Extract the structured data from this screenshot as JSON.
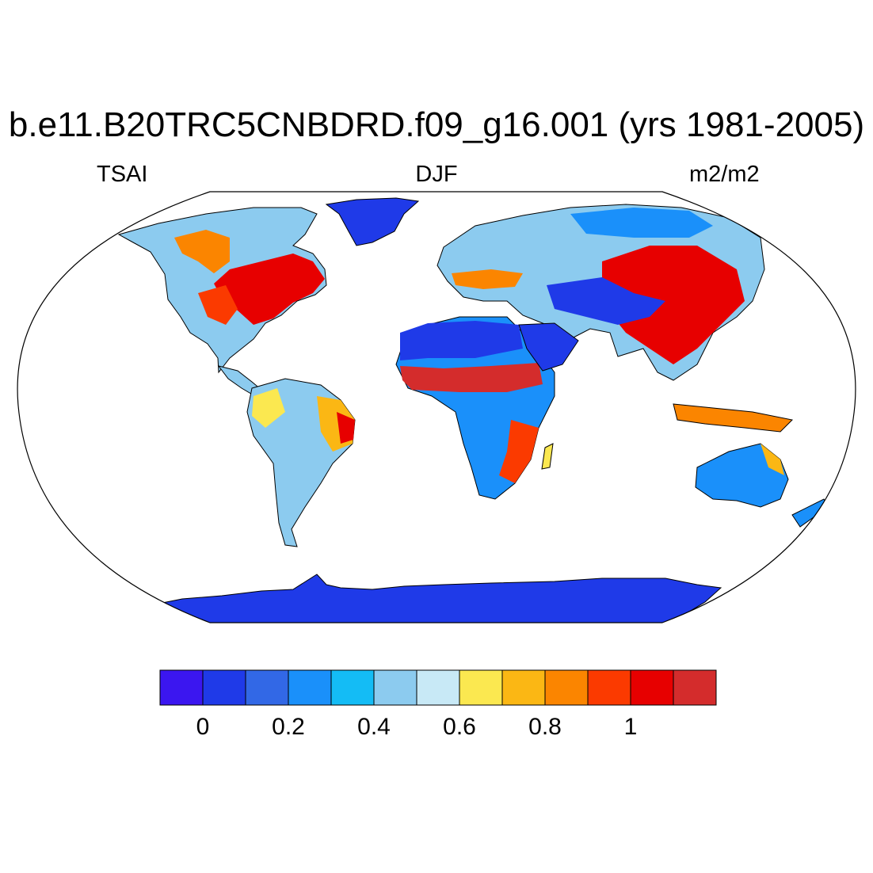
{
  "title": "b.e11.B20TRC5CNBDRD.f09_g16.001 (yrs 1981-2005)",
  "left_label": "TSAI",
  "center_label": "DJF",
  "right_label": "m2/m2",
  "colorbar": {
    "colors": [
      "#3b16f0",
      "#1f3ae8",
      "#3268e6",
      "#1a90fa",
      "#14bcf5",
      "#8ccbef",
      "#c8e9f6",
      "#fbe850",
      "#fbb714",
      "#fb8500",
      "#fb3a00",
      "#e70000",
      "#d42c2c"
    ],
    "ticks": [
      "0",
      "0.2",
      "0.4",
      "0.6",
      "0.8",
      "1"
    ]
  },
  "map": {
    "projection": "robinson",
    "ocean_color": "#ffffff"
  }
}
